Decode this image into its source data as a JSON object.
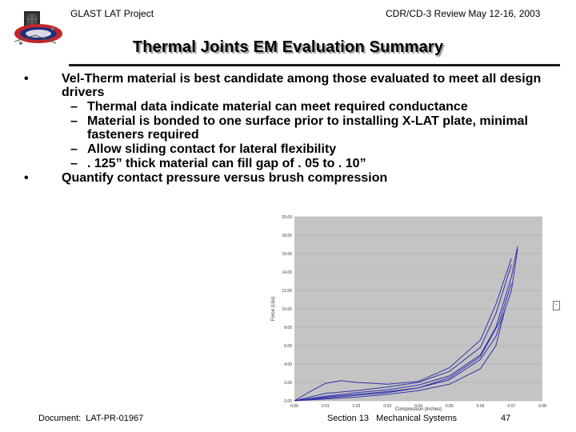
{
  "header": {
    "project": "GLAST LAT Project",
    "review": "CDR/CD-3 Review May 12-16, 2003"
  },
  "title": "Thermal Joints EM Evaluation Summary",
  "bullets": [
    {
      "text": "Vel-Therm material is best candidate among those evaluated to meet all design drivers",
      "subs": [
        "Thermal data indicate material can meet required conductance",
        "Material is bonded to one surface prior to installing X-LAT plate, minimal fasteners required",
        "Allow sliding contact for lateral flexibility",
        ". 125” thick material can fill gap of . 05 to . 10”"
      ]
    },
    {
      "text": "Quantify contact pressure versus brush compression",
      "subs": []
    }
  ],
  "chart_data": {
    "type": "line",
    "ylabel": "Force (Lbs)",
    "xlabel": "Compression (inches)",
    "ylim": [
      0,
      20
    ],
    "xlim": [
      0,
      0.08
    ],
    "y_ticks": [
      "0.00",
      "2.00",
      "4.00",
      "6.00",
      "8.00",
      "10.00",
      "12.00",
      "14.00",
      "16.00",
      "18.00",
      "20.00"
    ],
    "x_ticks": [
      "0.00",
      "0.01",
      "0.02",
      "0.03",
      "0.04",
      "0.05",
      "0.06",
      "0.07",
      "0.08"
    ],
    "grid": true,
    "line_color": "#3333aa",
    "series": [
      {
        "x": [
          0.0,
          0.01,
          0.02,
          0.03,
          0.04,
          0.05,
          0.06,
          0.065,
          0.07,
          0.072
        ],
        "y": [
          0.0,
          0.3,
          0.6,
          0.9,
          1.4,
          2.3,
          4.5,
          7.0,
          12.0,
          16.5
        ]
      },
      {
        "x": [
          0.0,
          0.01,
          0.02,
          0.03,
          0.04,
          0.05,
          0.06,
          0.065,
          0.07,
          0.072
        ],
        "y": [
          0.0,
          0.5,
          0.9,
          1.2,
          1.7,
          2.7,
          5.0,
          8.0,
          13.5,
          16.8
        ]
      },
      {
        "x": [
          0.0,
          0.01,
          0.02,
          0.03,
          0.04,
          0.05,
          0.06,
          0.065,
          0.07
        ],
        "y": [
          0.0,
          0.8,
          1.1,
          1.5,
          2.0,
          3.2,
          5.8,
          9.5,
          14.8
        ]
      },
      {
        "x": [
          0.0,
          0.005,
          0.01,
          0.015,
          0.02,
          0.03,
          0.04,
          0.05,
          0.06,
          0.065,
          0.07
        ],
        "y": [
          0.0,
          1.0,
          1.9,
          2.2,
          2.0,
          1.8,
          2.1,
          3.6,
          6.6,
          10.5,
          15.5
        ]
      },
      {
        "x": [
          0.0,
          0.01,
          0.02,
          0.03,
          0.04,
          0.05,
          0.06,
          0.065,
          0.068
        ],
        "y": [
          0.0,
          0.2,
          0.4,
          0.7,
          1.1,
          1.8,
          3.5,
          6.0,
          10.0
        ]
      },
      {
        "x": [
          0.0,
          0.01,
          0.02,
          0.03,
          0.04,
          0.05,
          0.06,
          0.066,
          0.07
        ],
        "y": [
          0.0,
          0.4,
          0.7,
          1.0,
          1.4,
          2.5,
          4.8,
          8.5,
          12.8
        ]
      }
    ]
  }
}
